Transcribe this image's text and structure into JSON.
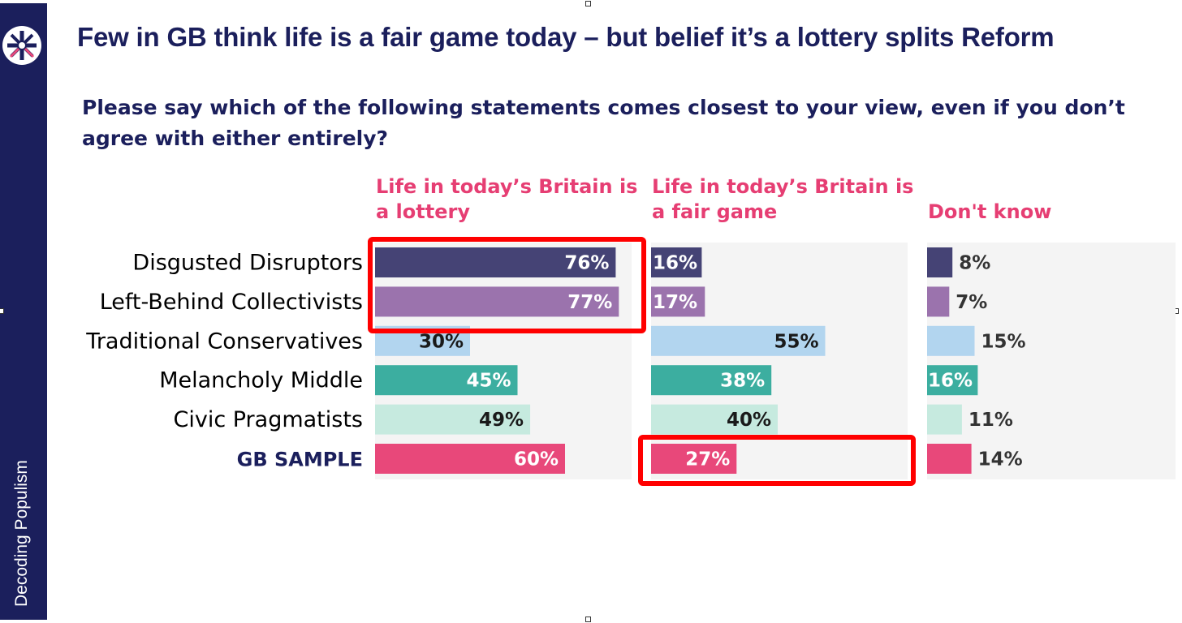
{
  "title": "Few in GB think life is a fair game today – but belief it’s a lottery splits Reform",
  "question": "Please say which of the following statements comes closest to your view, even if you don’t agree with either entirely?",
  "sidebar": {
    "text": "Decoding Populism",
    "logo_icon": "union-jack-logo-icon"
  },
  "colors": {
    "navy": "#1b1f5c",
    "heading_pink": "#e63e73",
    "highlight_red": "#ff0000",
    "panel_bg": "#f4f4f4",
    "groups": [
      "#454375",
      "#9b73ad",
      "#b2d5ef",
      "#3caea0",
      "#c6eadf",
      "#e8487a"
    ]
  },
  "chart_data": {
    "type": "bar",
    "orientation": "horizontal",
    "unit": "%",
    "categories": [
      "Disgusted Disruptors",
      "Left-Behind Collectivists",
      "Traditional Conservatives",
      "Melancholy Middle",
      "Civic Pragmatists",
      "GB SAMPLE"
    ],
    "series": [
      {
        "name": "Life in today’s Britain is a lottery",
        "values": [
          76,
          77,
          30,
          45,
          49,
          60
        ]
      },
      {
        "name": "Life in today’s Britain is a fair game",
        "values": [
          16,
          17,
          55,
          38,
          40,
          27
        ]
      },
      {
        "name": "Don't know",
        "values": [
          8,
          7,
          15,
          16,
          11,
          14
        ]
      }
    ],
    "value_labels": [
      [
        "76%",
        "77%",
        "30%",
        "45%",
        "49%",
        "60%"
      ],
      [
        "16%",
        "17%",
        "55%",
        "38%",
        "40%",
        "27%"
      ],
      [
        "8%",
        "7%",
        "15%",
        "16%",
        "11%",
        "14%"
      ]
    ],
    "highlights": [
      {
        "series": "Life in today’s Britain is a lottery",
        "categories": [
          "Disgusted Disruptors",
          "Left-Behind Collectivists"
        ]
      },
      {
        "series": "Life in today’s Britain is a fair game",
        "categories": [
          "GB SAMPLE"
        ]
      }
    ],
    "xlim": [
      0,
      100
    ],
    "legend": "column headers"
  }
}
